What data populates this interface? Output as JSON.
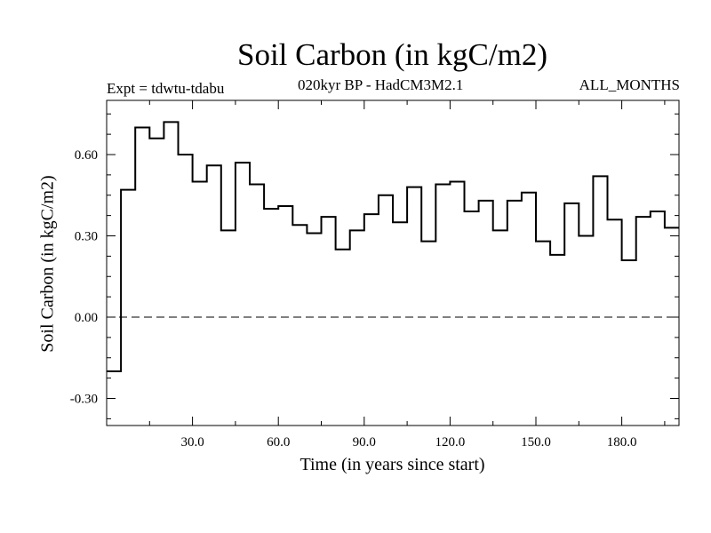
{
  "chart_data": {
    "type": "line",
    "style": "step",
    "title": "Soil Carbon (in kgC/m2)",
    "subtitle": "020kyr BP - HadCM3M2.1",
    "left_label": "Expt = tdwtu-tdabu",
    "right_label": "ALL_MONTHS",
    "xlabel": "Time (in years since start)",
    "ylabel": "Soil Carbon (in kgC/m2)",
    "xlim": [
      0,
      200
    ],
    "ylim": [
      -0.4,
      0.8
    ],
    "xticks": [
      30,
      60,
      90,
      120,
      150,
      180
    ],
    "xtick_labels": [
      "30.0",
      "60.0",
      "90.0",
      "120.0",
      "150.0",
      "180.0"
    ],
    "yticks": [
      -0.3,
      0.0,
      0.3,
      0.6
    ],
    "ytick_labels": [
      "-0.30",
      "0.00",
      "0.30",
      "0.60"
    ],
    "zero_line": "dashed",
    "series": [
      {
        "name": "Soil Carbon",
        "x": [
          0,
          5,
          10,
          15,
          20,
          25,
          30,
          35,
          40,
          45,
          50,
          55,
          60,
          65,
          70,
          75,
          80,
          85,
          90,
          95,
          100,
          105,
          110,
          115,
          120,
          125,
          130,
          135,
          140,
          145,
          150,
          155,
          160,
          165,
          170,
          175,
          180,
          185,
          190,
          195
        ],
        "values": [
          -0.2,
          0.47,
          0.7,
          0.66,
          0.72,
          0.6,
          0.5,
          0.56,
          0.32,
          0.57,
          0.49,
          0.4,
          0.41,
          0.34,
          0.31,
          0.37,
          0.25,
          0.32,
          0.38,
          0.45,
          0.35,
          0.48,
          0.28,
          0.49,
          0.5,
          0.39,
          0.43,
          0.32,
          0.43,
          0.46,
          0.28,
          0.23,
          0.42,
          0.3,
          0.52,
          0.36,
          0.21,
          0.37,
          0.39,
          0.33
        ]
      }
    ]
  }
}
